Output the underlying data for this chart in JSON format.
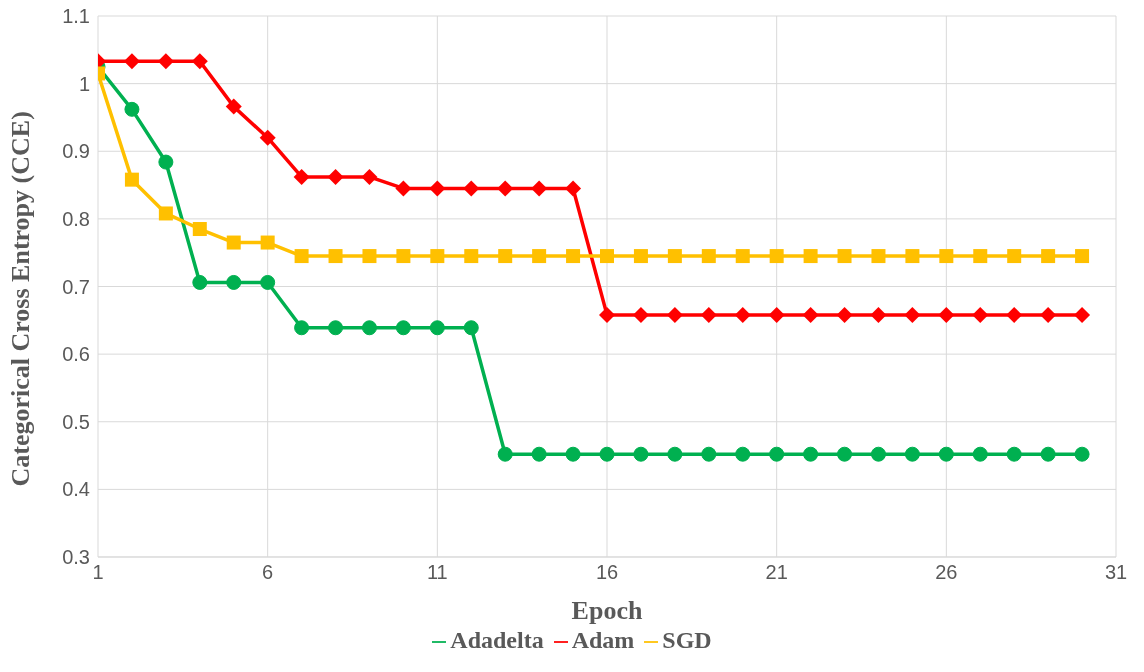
{
  "chart_data": {
    "type": "line",
    "xlabel": "Epoch",
    "ylabel": "Categorical Cross Entropy (CCE)",
    "x": [
      1,
      2,
      3,
      4,
      5,
      6,
      7,
      8,
      9,
      10,
      11,
      12,
      13,
      14,
      15,
      16,
      17,
      18,
      19,
      20,
      21,
      22,
      23,
      24,
      25,
      26,
      27,
      28,
      29,
      30
    ],
    "series": [
      {
        "name": "Adadelta",
        "color": "#00b050",
        "marker": "circle",
        "values": [
          1.025,
          0.962,
          0.884,
          0.706,
          0.706,
          0.706,
          0.639,
          0.639,
          0.639,
          0.639,
          0.639,
          0.639,
          0.452,
          0.452,
          0.452,
          0.452,
          0.452,
          0.452,
          0.452,
          0.452,
          0.452,
          0.452,
          0.452,
          0.452,
          0.452,
          0.452,
          0.452,
          0.452,
          0.452,
          0.452
        ]
      },
      {
        "name": "Adam",
        "color": "#ff0000",
        "marker": "diamond",
        "values": [
          1.033,
          1.033,
          1.033,
          1.033,
          0.966,
          0.92,
          0.862,
          0.862,
          0.862,
          0.845,
          0.845,
          0.845,
          0.845,
          0.845,
          0.845,
          0.658,
          0.658,
          0.658,
          0.658,
          0.658,
          0.658,
          0.658,
          0.658,
          0.658,
          0.658,
          0.658,
          0.658,
          0.658,
          0.658,
          0.658
        ]
      },
      {
        "name": "SGD",
        "color": "#ffc000",
        "marker": "square",
        "values": [
          1.015,
          0.858,
          0.808,
          0.785,
          0.765,
          0.765,
          0.745,
          0.745,
          0.745,
          0.745,
          0.745,
          0.745,
          0.745,
          0.745,
          0.745,
          0.745,
          0.745,
          0.745,
          0.745,
          0.745,
          0.745,
          0.745,
          0.745,
          0.745,
          0.745,
          0.745,
          0.745,
          0.745,
          0.745,
          0.745
        ]
      }
    ],
    "xlim": [
      1,
      31
    ],
    "xticks": [
      1,
      6,
      11,
      16,
      21,
      26,
      31
    ],
    "ylim": [
      0.3,
      1.1
    ],
    "yticks": [
      0.3,
      0.4,
      0.5,
      0.6,
      0.7,
      0.8,
      0.9,
      1,
      1.1
    ],
    "grid": true,
    "legend": "bottom",
    "line_style": "solid"
  }
}
